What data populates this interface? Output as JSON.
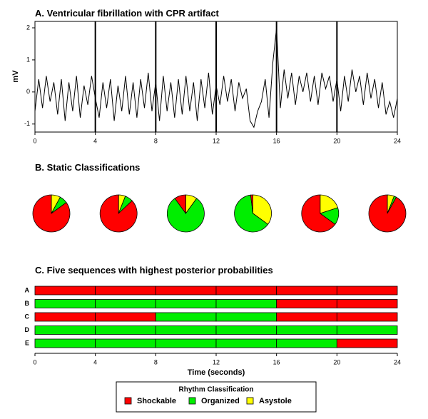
{
  "chart_data": [
    {
      "type": "line",
      "title": "A. Ventricular fibrillation with CPR artifact",
      "ylabel": "mV",
      "color": "#000000",
      "x": [
        0,
        0.25,
        0.5,
        0.75,
        1,
        1.25,
        1.5,
        1.75,
        2,
        2.25,
        2.5,
        2.75,
        3,
        3.25,
        3.5,
        3.75,
        4,
        4.25,
        4.5,
        4.75,
        5,
        5.25,
        5.5,
        5.75,
        6,
        6.25,
        6.5,
        6.75,
        7,
        7.25,
        7.5,
        7.75,
        8,
        8.25,
        8.5,
        8.75,
        9,
        9.25,
        9.5,
        9.75,
        10,
        10.25,
        10.5,
        10.75,
        11,
        11.25,
        11.5,
        11.75,
        12,
        12.25,
        12.5,
        12.75,
        13,
        13.25,
        13.5,
        13.75,
        14,
        14.25,
        14.5,
        14.75,
        15,
        15.25,
        15.5,
        15.75,
        16,
        16.25,
        16.5,
        16.75,
        17,
        17.25,
        17.5,
        17.75,
        18,
        18.25,
        18.5,
        18.75,
        19,
        19.25,
        19.5,
        19.75,
        20,
        20.25,
        20.5,
        20.75,
        21,
        21.25,
        21.5,
        21.75,
        22,
        22.25,
        22.5,
        22.75,
        23,
        23.25,
        23.5,
        23.75,
        24
      ],
      "values": [
        -0.6,
        0.4,
        -0.5,
        0.5,
        -0.3,
        0.3,
        -0.7,
        0.4,
        -0.9,
        0.3,
        -0.6,
        0.5,
        -0.8,
        0.2,
        -0.4,
        0.5,
        -0.2,
        -0.8,
        0.3,
        -0.5,
        0.4,
        -0.9,
        0.2,
        -0.6,
        0.5,
        -0.7,
        0.3,
        -0.8,
        0.4,
        -0.5,
        0.6,
        -0.6,
        0.3,
        -0.9,
        0.5,
        -0.6,
        0.3,
        -0.8,
        0.4,
        -0.7,
        0.5,
        -0.6,
        0.3,
        -0.9,
        0.4,
        -0.5,
        0.6,
        -0.7,
        0.2,
        -0.4,
        0.5,
        -0.3,
        0.4,
        -0.6,
        0.3,
        -0.2,
        0.1,
        -0.9,
        -1.1,
        -0.6,
        -0.3,
        0.4,
        -0.8,
        0.9,
        2.0,
        -0.5,
        0.7,
        -0.2,
        0.6,
        -0.4,
        0.5,
        0.0,
        0.6,
        -0.3,
        0.5,
        -0.4,
        0.6,
        0.1,
        0.5,
        -0.3,
        0.4,
        -0.6,
        0.5,
        -0.3,
        0.7,
        0.0,
        0.5,
        -0.4,
        0.6,
        -0.2,
        0.4,
        -0.5,
        0.3,
        -0.7,
        -0.3,
        -0.8,
        -0.2
      ],
      "xlim": [
        0,
        24
      ],
      "xticks": [
        0,
        4,
        8,
        12,
        16,
        20,
        24
      ],
      "ylim": [
        -1.25,
        2.2
      ],
      "yticks": [
        -1,
        0,
        1,
        2
      ]
    },
    {
      "type": "pie",
      "title": "B. Static Classifications",
      "values": [
        [
          85,
          7,
          8
        ],
        [
          87,
          7,
          6
        ],
        [
          10,
          80,
          10
        ],
        [
          2,
          63,
          35
        ],
        [
          65,
          15,
          20
        ],
        [
          92,
          2,
          6
        ]
      ]
    },
    {
      "type": "timeline",
      "title": "C. Five sequences with highest posterior probabilities",
      "xlabel": "Time (seconds)",
      "xlim": [
        0,
        24
      ],
      "xticks": [
        0,
        4,
        8,
        12,
        16,
        20,
        24
      ],
      "sequences": [
        {
          "name": "A",
          "states": [
            "Shockable",
            "Shockable",
            "Shockable",
            "Shockable",
            "Shockable",
            "Shockable"
          ]
        },
        {
          "name": "B",
          "states": [
            "Organized",
            "Organized",
            "Organized",
            "Organized",
            "Shockable",
            "Shockable"
          ]
        },
        {
          "name": "C",
          "states": [
            "Shockable",
            "Shockable",
            "Organized",
            "Organized",
            "Shockable",
            "Shockable"
          ]
        },
        {
          "name": "D",
          "states": [
            "Organized",
            "Organized",
            "Organized",
            "Organized",
            "Organized",
            "Organized"
          ]
        },
        {
          "name": "E",
          "states": [
            "Organized",
            "Organized",
            "Organized",
            "Organized",
            "Organized",
            "Shockable"
          ]
        }
      ]
    }
  ],
  "legend": {
    "title": "Rhythm Classification",
    "position": "bottom",
    "items": [
      {
        "name": "Shockable",
        "color": "#ff0000"
      },
      {
        "name": "Organized",
        "color": "#00ee00"
      },
      {
        "name": "Asystole",
        "color": "#ffff00"
      }
    ]
  }
}
